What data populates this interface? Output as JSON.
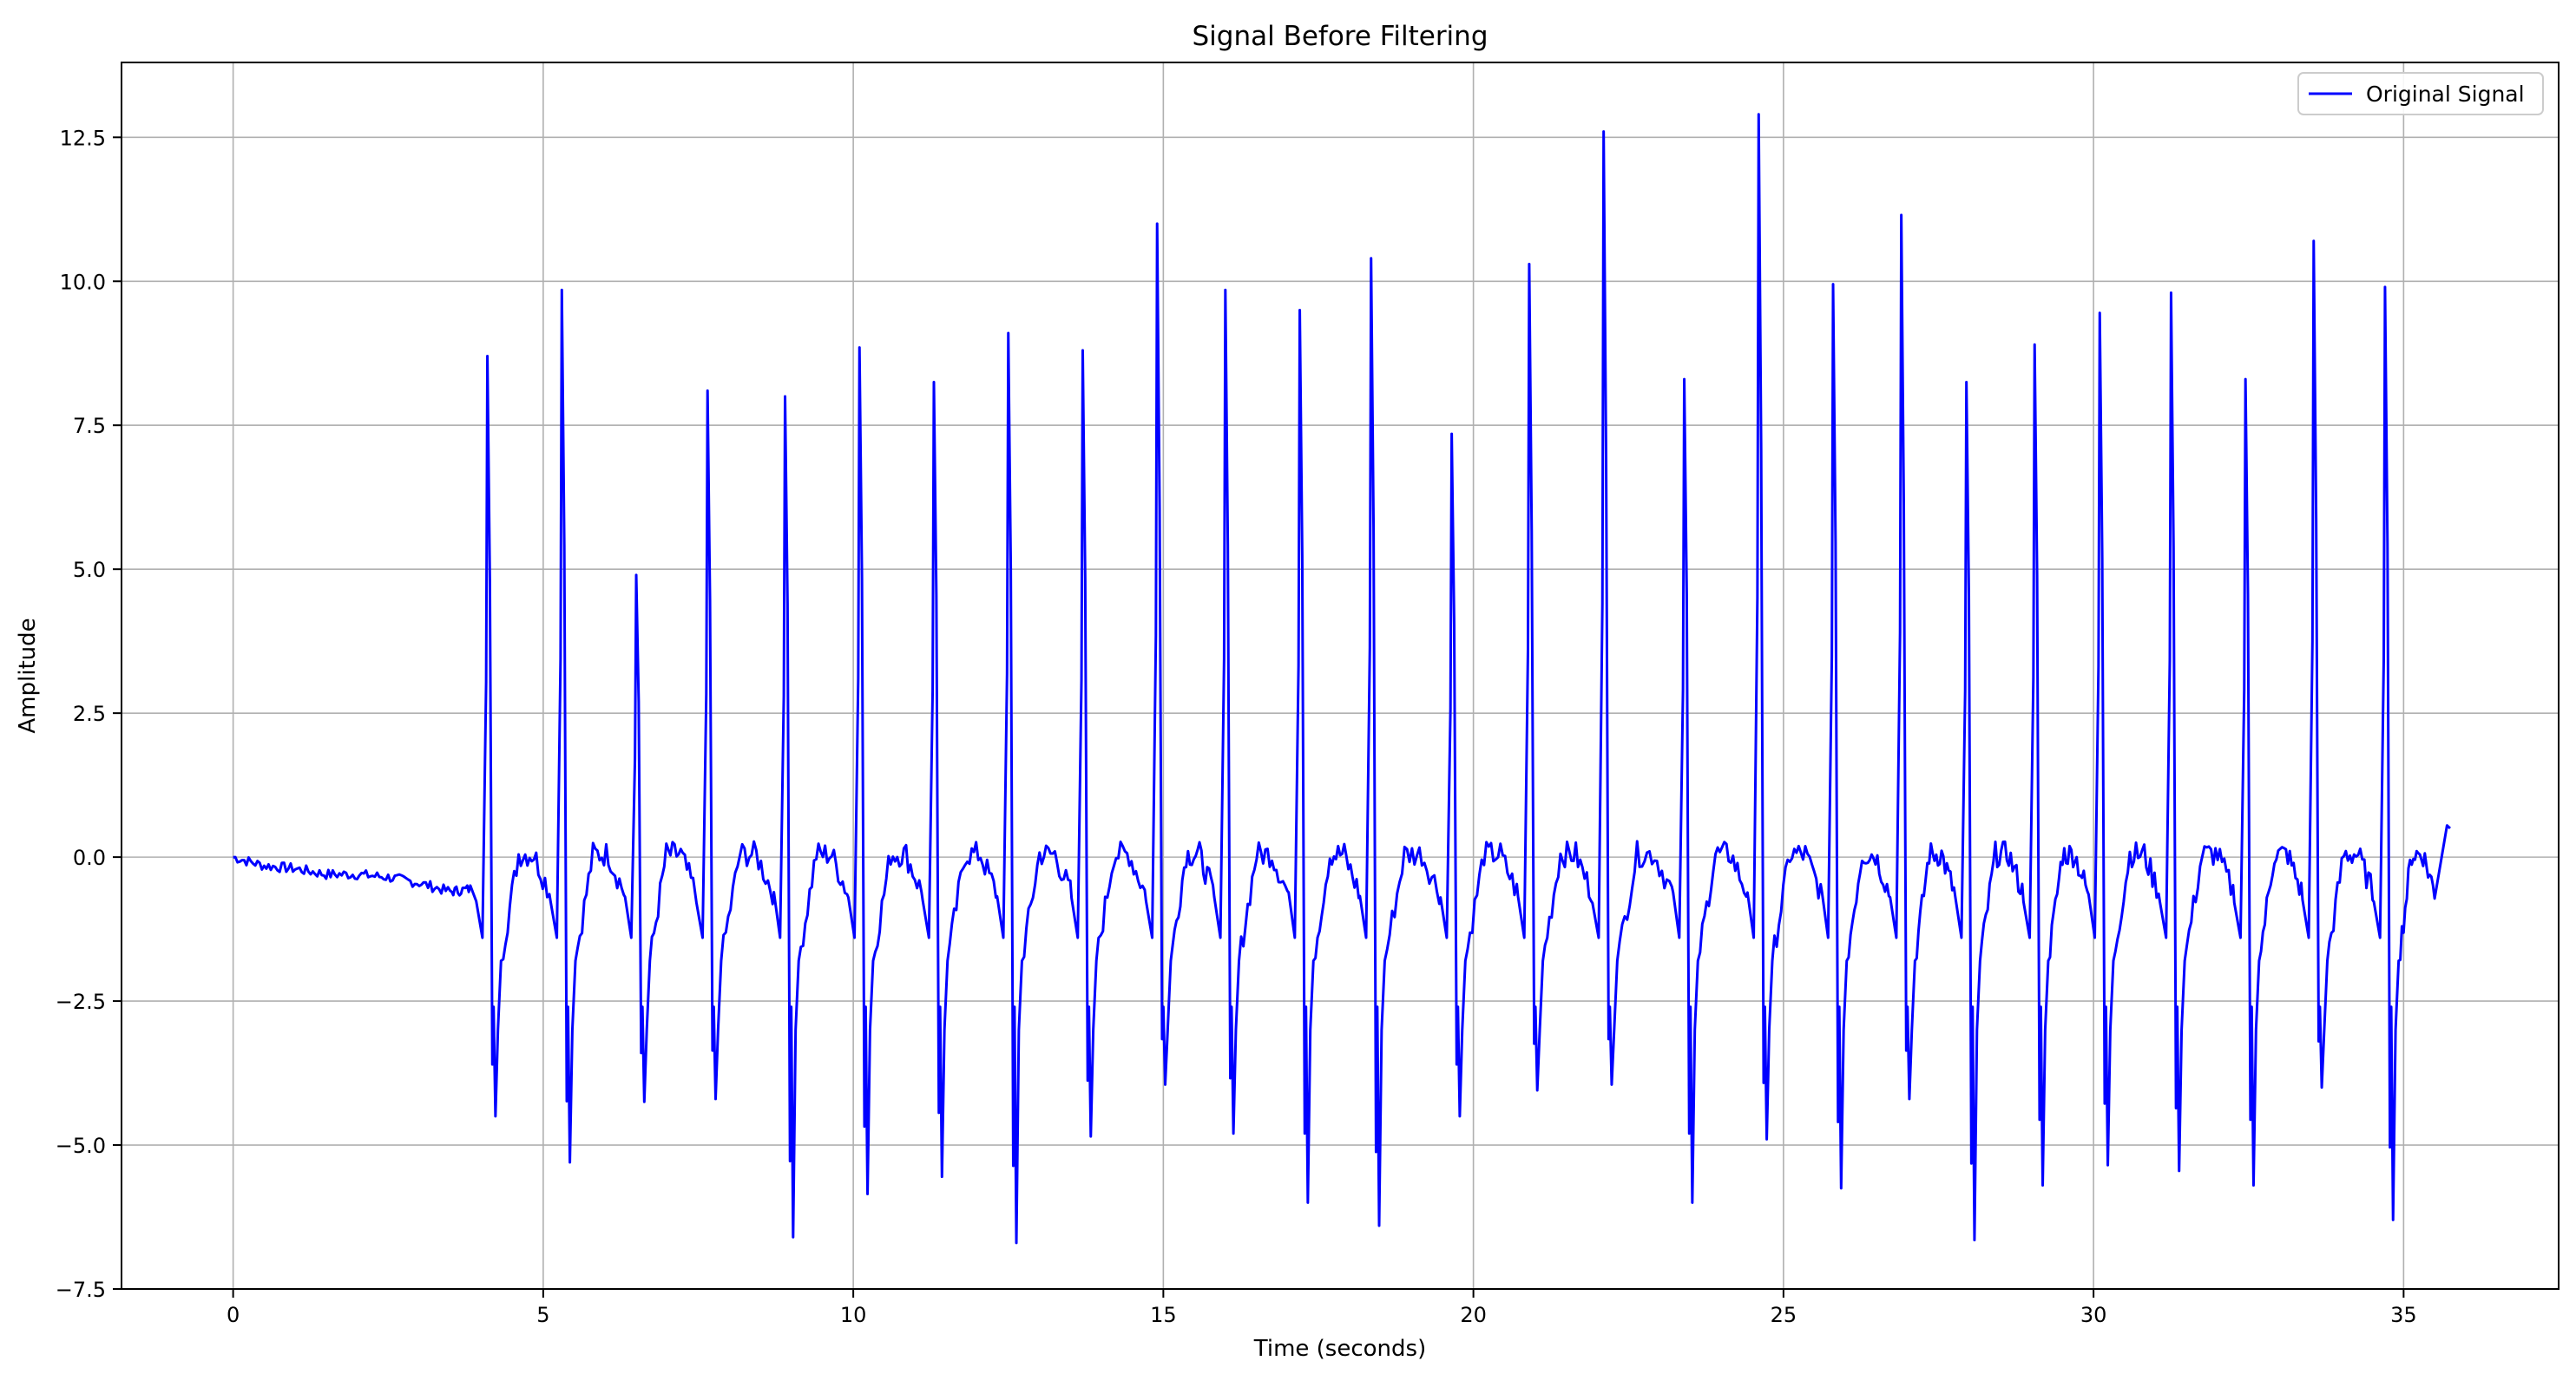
{
  "chart_data": {
    "type": "line",
    "title": "Signal Before Filtering",
    "xlabel": "Time (seconds)",
    "ylabel": "Amplitude",
    "xlim": [
      -1.8,
      37.5
    ],
    "ylim": [
      -7.5,
      13.8
    ],
    "xticks": [
      0,
      5,
      10,
      15,
      20,
      25,
      30,
      35
    ],
    "yticks": [
      -7.5,
      -5.0,
      -2.5,
      0.0,
      2.5,
      5.0,
      7.5,
      10.0,
      12.5
    ],
    "xtick_labels": [
      "0",
      "5",
      "10",
      "15",
      "20",
      "25",
      "30",
      "35"
    ],
    "ytick_labels": [
      "−7.5",
      "−5.0",
      "−2.5",
      "0.0",
      "2.5",
      "5.0",
      "7.5",
      "10.0",
      "12.5"
    ],
    "grid": true,
    "legend_position": "top-right",
    "series": [
      {
        "name": "Original Signal",
        "color": "#0000ff",
        "baseline": [
          [
            0,
            0.0
          ],
          [
            0.5,
            -0.15
          ],
          [
            1.0,
            -0.2
          ],
          [
            1.5,
            -0.3
          ],
          [
            2.0,
            -0.3
          ],
          [
            2.5,
            -0.35
          ],
          [
            3.0,
            -0.45
          ],
          [
            3.5,
            -0.6
          ],
          [
            3.85,
            -0.55
          ]
        ],
        "beats": [
          {
            "t": 4.1,
            "peak": 8.7,
            "trough": -4.5
          },
          {
            "t": 5.3,
            "peak": 9.85,
            "trough": -5.3
          },
          {
            "t": 6.5,
            "peak": 4.9,
            "trough": -4.25
          },
          {
            "t": 7.65,
            "peak": 8.1,
            "trough": -4.2
          },
          {
            "t": 8.9,
            "peak": 8.0,
            "trough": -6.6
          },
          {
            "t": 10.1,
            "peak": 8.85,
            "trough": -5.85
          },
          {
            "t": 11.3,
            "peak": 8.25,
            "trough": -5.55
          },
          {
            "t": 12.5,
            "peak": 9.1,
            "trough": -6.7
          },
          {
            "t": 13.7,
            "peak": 8.8,
            "trough": -4.85
          },
          {
            "t": 14.9,
            "peak": 11.0,
            "trough": -3.95
          },
          {
            "t": 16.0,
            "peak": 9.85,
            "trough": -4.8
          },
          {
            "t": 17.2,
            "peak": 9.5,
            "trough": -6.0
          },
          {
            "t": 18.35,
            "peak": 10.4,
            "trough": -6.4
          },
          {
            "t": 19.65,
            "peak": 7.35,
            "trough": -4.5
          },
          {
            "t": 20.9,
            "peak": 10.3,
            "trough": -4.05
          },
          {
            "t": 22.1,
            "peak": 12.6,
            "trough": -3.95
          },
          {
            "t": 23.4,
            "peak": 8.3,
            "trough": -6.0
          },
          {
            "t": 24.6,
            "peak": 12.9,
            "trough": -4.9
          },
          {
            "t": 25.8,
            "peak": 9.95,
            "trough": -5.75
          },
          {
            "t": 26.9,
            "peak": 11.15,
            "trough": -4.2
          },
          {
            "t": 27.95,
            "peak": 8.25,
            "trough": -6.65
          },
          {
            "t": 29.05,
            "peak": 8.9,
            "trough": -5.7
          },
          {
            "t": 30.1,
            "peak": 9.45,
            "trough": -5.35
          },
          {
            "t": 31.25,
            "peak": 9.8,
            "trough": -5.45
          },
          {
            "t": 32.45,
            "peak": 8.3,
            "trough": -5.7
          },
          {
            "t": 33.55,
            "peak": 10.7,
            "trough": -4.0
          },
          {
            "t": 34.7,
            "peak": 9.9,
            "trough": -6.3
          }
        ],
        "end": [
          [
            35.7,
            0.55
          ],
          [
            35.75,
            0.5
          ]
        ]
      }
    ]
  }
}
